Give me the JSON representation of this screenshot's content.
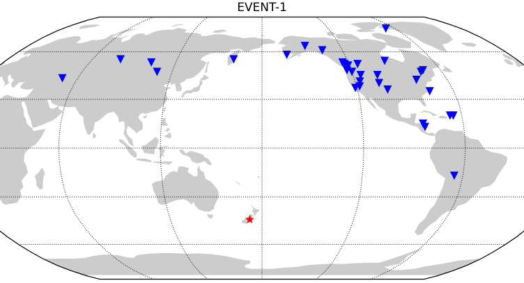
{
  "title": "EVENT-1",
  "projection": "robinson",
  "central_longitude": 180,
  "colors": {
    "ocean": "#ffffff",
    "land": "#cccccc",
    "border": "#000000",
    "graticule": "#000000",
    "station_marker": "#0000ff",
    "event_marker": "#ff0000"
  },
  "event": {
    "lat": -44,
    "lon": 172,
    "marker": "star"
  },
  "stations": [
    {
      "lat": 77,
      "lon": -68
    },
    {
      "lat": 64,
      "lon": -147
    },
    {
      "lat": 61,
      "lon": -135
    },
    {
      "lat": 58,
      "lon": -162
    },
    {
      "lat": 55,
      "lon": 80
    },
    {
      "lat": 55,
      "lon": 160
    },
    {
      "lat": 53,
      "lon": 103
    },
    {
      "lat": 47,
      "lon": 110
    },
    {
      "lat": 43,
      "lon": 50
    },
    {
      "lat": 53,
      "lon": -124
    },
    {
      "lat": 52,
      "lon": -123
    },
    {
      "lat": 51,
      "lon": -121
    },
    {
      "lat": 52,
      "lon": -114
    },
    {
      "lat": 54,
      "lon": -94
    },
    {
      "lat": 48,
      "lon": -123
    },
    {
      "lat": 47,
      "lon": -120
    },
    {
      "lat": 45,
      "lon": -115
    },
    {
      "lat": 45,
      "lon": -104
    },
    {
      "lat": 42,
      "lon": -80
    },
    {
      "lat": 48,
      "lon": -72
    },
    {
      "lat": 47,
      "lon": -74
    },
    {
      "lat": 41,
      "lon": -117
    },
    {
      "lat": 38,
      "lon": -118
    },
    {
      "lat": 37,
      "lon": -121
    },
    {
      "lat": 40,
      "lon": -105
    },
    {
      "lat": 36,
      "lon": -101
    },
    {
      "lat": 35,
      "lon": -75
    },
    {
      "lat": 20,
      "lon": -67
    },
    {
      "lat": 20,
      "lon": -65
    },
    {
      "lat": 15,
      "lon": -84
    },
    {
      "lat": 13,
      "lon": -83
    },
    {
      "lat": -17,
      "lon": -65
    }
  ]
}
